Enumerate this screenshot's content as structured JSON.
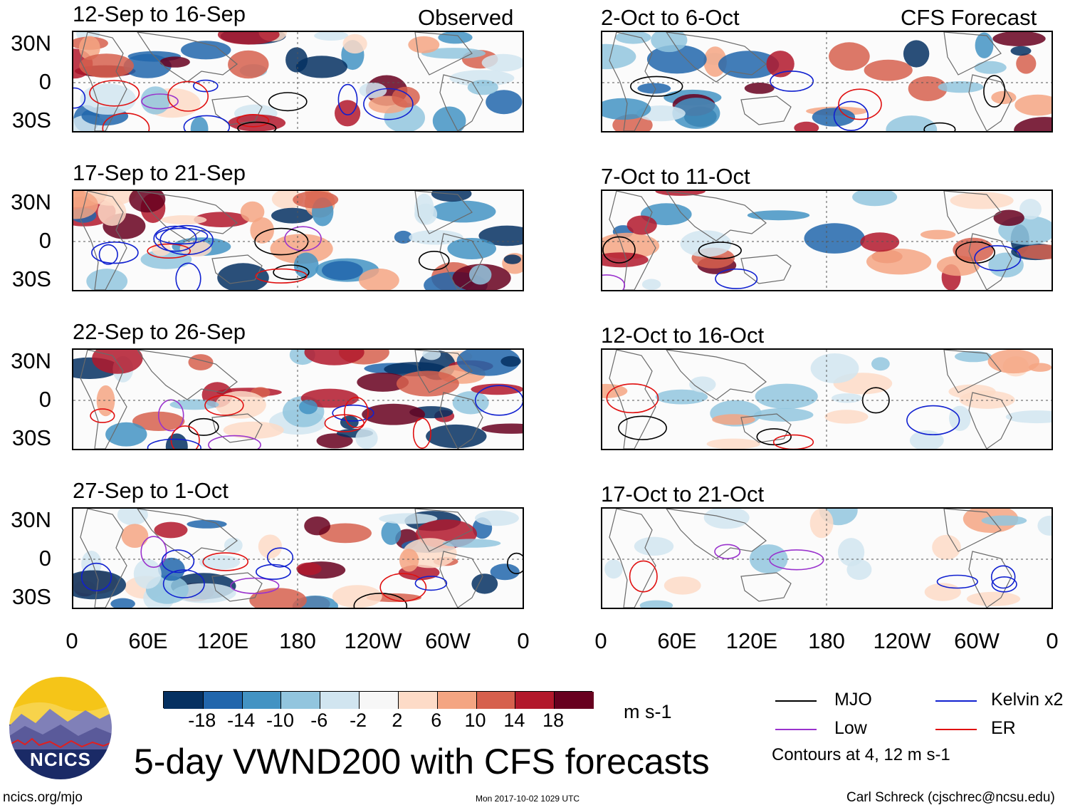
{
  "figure": {
    "title": "5-day VWND200 with CFS forecasts",
    "left_column_label": "Observed",
    "right_column_label": "CFS Forecast",
    "lat_labels": [
      "30N",
      "0",
      "30S"
    ],
    "lon_labels": [
      "0",
      "60E",
      "120E",
      "180",
      "120W",
      "60W",
      "0"
    ]
  },
  "panels": {
    "observed": [
      {
        "title": "12-Sep to 16-Sep"
      },
      {
        "title": "17-Sep to 21-Sep"
      },
      {
        "title": "22-Sep to 26-Sep"
      },
      {
        "title": "27-Sep to 1-Oct"
      }
    ],
    "forecast": [
      {
        "title": "2-Oct to 6-Oct"
      },
      {
        "title": "7-Oct to 11-Oct"
      },
      {
        "title": "12-Oct to 16-Oct"
      },
      {
        "title": "17-Oct to 21-Oct"
      }
    ]
  },
  "colorbar": {
    "ticks": [
      "-18",
      "-14",
      "-10",
      "-6",
      "-2",
      "2",
      "6",
      "10",
      "14",
      "18"
    ],
    "units": "m s-1",
    "colors": [
      "#053061",
      "#2166ac",
      "#4393c3",
      "#92c5de",
      "#d1e5f0",
      "#f7f7f7",
      "#fddbc7",
      "#f4a582",
      "#d6604d",
      "#b2182b",
      "#67001f"
    ]
  },
  "legend": {
    "items": [
      {
        "label": "MJO",
        "color": "#000000"
      },
      {
        "label": "Kelvin x2",
        "color": "#1020d0"
      },
      {
        "label": "Low",
        "color": "#9a32cd"
      },
      {
        "label": "ER",
        "color": "#e01010"
      }
    ],
    "note": "Contours at 4, 12 m s-1"
  },
  "logo": {
    "text": "NCICS"
  },
  "footer": {
    "url": "ncics.org/mjo",
    "timestamp": "Mon 2017-10-02 1029 UTC",
    "credit": "Carl Schreck (cjschrec@ncsu.edu)"
  }
}
